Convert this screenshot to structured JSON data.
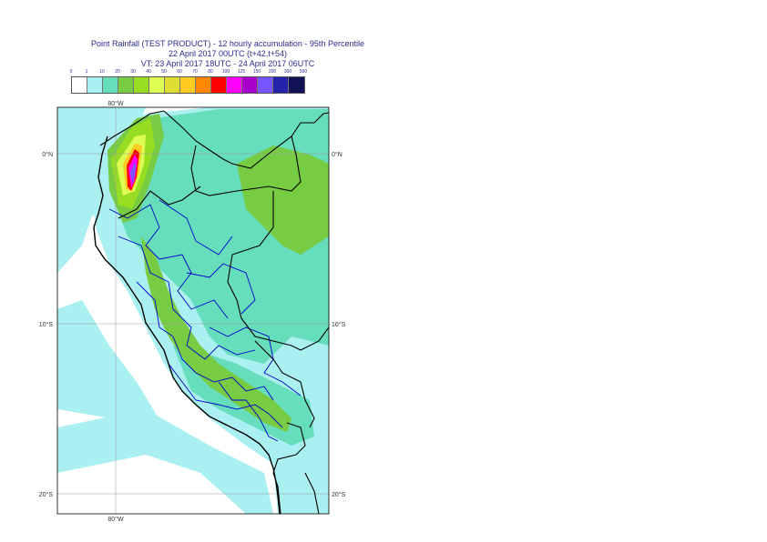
{
  "title": {
    "line1": "Point Rainfall (TEST PRODUCT) - 12 hourly accumulation - 95th Percentile",
    "line2": "22 April 2017 00UTC (t+42,t+54)",
    "line3": "VT: 23 April 2017 18UTC - 24 April 2017 06UTC"
  },
  "legend": {
    "thresholds": [
      "0",
      "1",
      "10",
      "20",
      "30",
      "40",
      "50",
      "60",
      "70",
      "80",
      "100",
      "125",
      "150",
      "200",
      "300",
      "500"
    ],
    "colors": [
      "#ffffff",
      "#aaf0f0",
      "#66ddbb",
      "#77cc44",
      "#99dd22",
      "#ddff55",
      "#dddd33",
      "#ffcc22",
      "#ff8800",
      "#ff0000",
      "#ff00ff",
      "#aa00cc",
      "#7755ff",
      "#2222aa",
      "#111155"
    ]
  },
  "map": {
    "axis_labels": {
      "lon_top": "80°W",
      "lon_bottom": "80°W",
      "lat_0_left": "0°N",
      "lat_0_right": "0°N",
      "lat_10_left": "10°S",
      "lat_10_right": "10°S",
      "lat_20_left": "20°S",
      "lat_20_right": "20°S"
    },
    "colors": {
      "coast": "#000000",
      "admin_boundaries": "#0000cc",
      "gridlines": "#999999"
    }
  }
}
